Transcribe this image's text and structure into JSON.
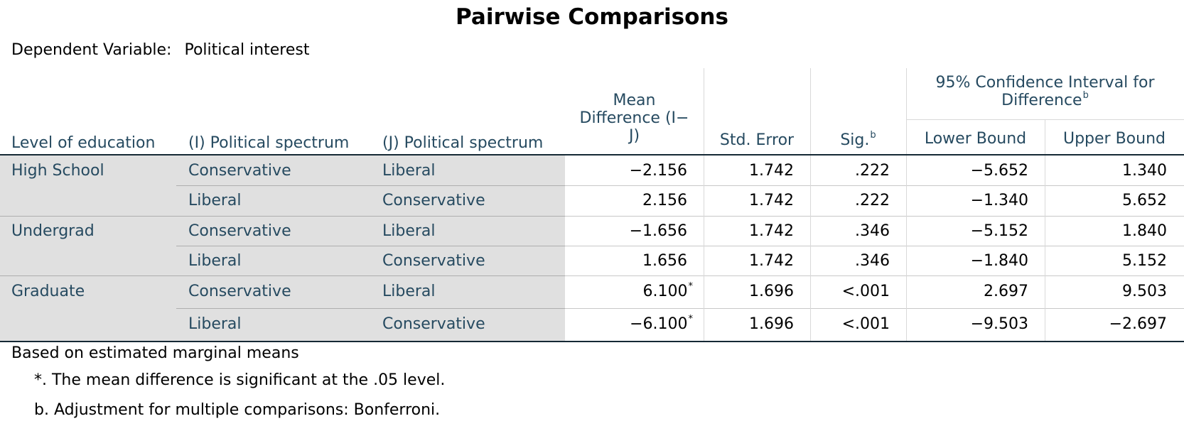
{
  "title": "Pairwise Comparisons",
  "dependent_variable": {
    "label": "Dependent Variable:",
    "value": "Political interest"
  },
  "headers": {
    "level": "Level of education",
    "i_spectrum": "(I) Political spectrum",
    "j_spectrum": "(J) Political spectrum",
    "mean_diff_line1": "Mean",
    "mean_diff_line2": "Difference (I−",
    "mean_diff_line3": "J)",
    "std_error": "Std. Error",
    "sig": "Sig.",
    "sig_sup": "b",
    "ci_line1": "95% Confidence Interval for",
    "ci_line2": "Difference",
    "ci_sup": "b",
    "lower": "Lower Bound",
    "upper": "Upper Bound"
  },
  "rows": [
    {
      "level": "High School",
      "i": "Conservative",
      "j": "Liberal",
      "mean": "−2.156",
      "mean_sup": "",
      "se": "1.742",
      "sig": ".222",
      "lower": "−5.652",
      "upper": "1.340"
    },
    {
      "level": "",
      "i": "Liberal",
      "j": "Conservative",
      "mean": "2.156",
      "mean_sup": "",
      "se": "1.742",
      "sig": ".222",
      "lower": "−1.340",
      "upper": "5.652"
    },
    {
      "level": "Undergrad",
      "i": "Conservative",
      "j": "Liberal",
      "mean": "−1.656",
      "mean_sup": "",
      "se": "1.742",
      "sig": ".346",
      "lower": "−5.152",
      "upper": "1.840"
    },
    {
      "level": "",
      "i": "Liberal",
      "j": "Conservative",
      "mean": "1.656",
      "mean_sup": "",
      "se": "1.742",
      "sig": ".346",
      "lower": "−1.840",
      "upper": "5.152"
    },
    {
      "level": "Graduate",
      "i": "Conservative",
      "j": "Liberal",
      "mean": "6.100",
      "mean_sup": "*",
      "se": "1.696",
      "sig": "<.001",
      "lower": "2.697",
      "upper": "9.503"
    },
    {
      "level": "",
      "i": "Liberal",
      "j": "Conservative",
      "mean": "−6.100",
      "mean_sup": "*",
      "se": "1.696",
      "sig": "<.001",
      "lower": "−9.503",
      "upper": "−2.697"
    }
  ],
  "footnotes": {
    "based_on": "Based on estimated marginal means",
    "star": "*. The mean difference is significant at the .05 level.",
    "b": "b. Adjustment for multiple comparisons: Bonferroni."
  }
}
